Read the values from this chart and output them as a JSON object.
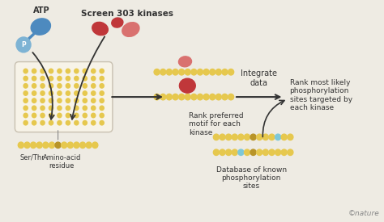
{
  "bg_color": "#eeebe3",
  "atp_label": "ATP",
  "p_label": "P",
  "screen_label": "Screen 303 kinases",
  "rank_label": "Rank preferred\nmotif for each\nkinase",
  "integrate_label": "Integrate\ndata",
  "rank_sites_label": "Rank most likely\nphosphorylation\nsites targeted by\neach kinase",
  "database_label": "Database of known\nphosphorylation\nsites",
  "ser_label": "Ser/Thr",
  "amino_label": "Amino-acid\nresidue",
  "nature_label": "©nature",
  "red_dark": "#c0373a",
  "red_light": "#d9716f",
  "blue_dark": "#4d8abf",
  "blue_light": "#7db3d4",
  "yellow": "#e6c84e",
  "tan": "#b89428",
  "sky": "#7ec8d8",
  "arrow_col": "#333333",
  "text_col": "#333333",
  "plate_fill": "#f7f3e8",
  "plate_edge": "#c8c0b0"
}
